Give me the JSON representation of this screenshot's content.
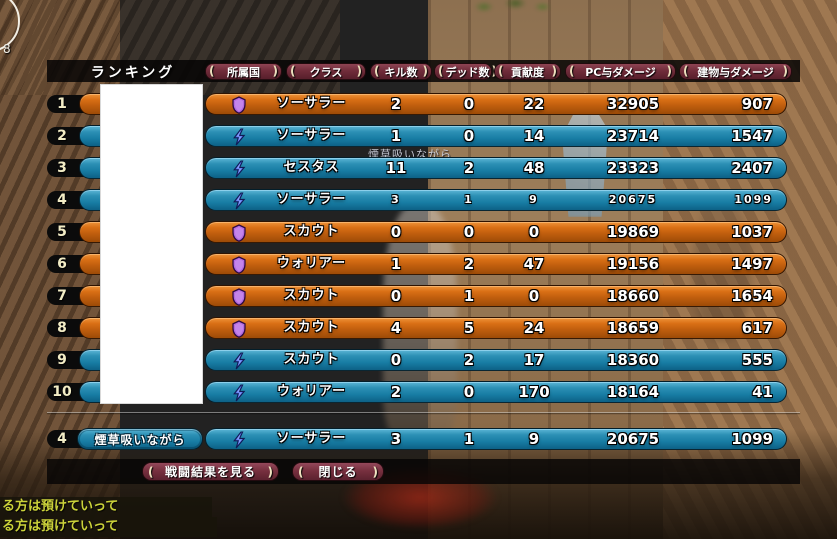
{
  "hud": {
    "counter": "8",
    "floating_name": "煙草吸いながら",
    "chat_lines": [
      "る方は預けていって",
      "る方は預けていって"
    ]
  },
  "panel": {
    "title": "ランキング",
    "columns": [
      {
        "label": "所属国"
      },
      {
        "label": "クラス"
      },
      {
        "label": "キル数"
      },
      {
        "label": "デッド数"
      },
      {
        "label": "貢献度"
      },
      {
        "label": "PC与ダメージ"
      },
      {
        "label": "建物与ダメージ"
      }
    ],
    "rows": [
      {
        "rank": "1",
        "team": "orange",
        "icon": "shield",
        "class_name": "ソーサラー",
        "kills": "2",
        "deaths": "0",
        "contribution": "22",
        "pc_damage": "32905",
        "building_damage": "907",
        "small": false
      },
      {
        "rank": "2",
        "team": "blue",
        "icon": "bolt",
        "class_name": "ソーサラー",
        "kills": "1",
        "deaths": "0",
        "contribution": "14",
        "pc_damage": "23714",
        "building_damage": "1547",
        "small": false
      },
      {
        "rank": "3",
        "team": "blue",
        "icon": "bolt",
        "class_name": "セスタス",
        "kills": "11",
        "deaths": "2",
        "contribution": "48",
        "pc_damage": "23323",
        "building_damage": "2407",
        "small": false
      },
      {
        "rank": "4",
        "team": "blue",
        "icon": "bolt",
        "class_name": "ソーサラー",
        "kills": "3",
        "deaths": "1",
        "contribution": "9",
        "pc_damage": "20675",
        "building_damage": "1099",
        "small": true
      },
      {
        "rank": "5",
        "team": "orange",
        "icon": "shield",
        "class_name": "スカウト",
        "kills": "0",
        "deaths": "0",
        "contribution": "0",
        "pc_damage": "19869",
        "building_damage": "1037",
        "small": false
      },
      {
        "rank": "6",
        "team": "orange",
        "icon": "shield",
        "class_name": "ウォリアー",
        "kills": "1",
        "deaths": "2",
        "contribution": "47",
        "pc_damage": "19156",
        "building_damage": "1497",
        "small": false
      },
      {
        "rank": "7",
        "team": "orange",
        "icon": "shield",
        "class_name": "スカウト",
        "kills": "0",
        "deaths": "1",
        "contribution": "0",
        "pc_damage": "18660",
        "building_damage": "1654",
        "small": false
      },
      {
        "rank": "8",
        "team": "orange",
        "icon": "shield",
        "class_name": "スカウト",
        "kills": "4",
        "deaths": "5",
        "contribution": "24",
        "pc_damage": "18659",
        "building_damage": "617",
        "small": false
      },
      {
        "rank": "9",
        "team": "blue",
        "icon": "bolt",
        "class_name": "スカウト",
        "kills": "0",
        "deaths": "2",
        "contribution": "17",
        "pc_damage": "18360",
        "building_damage": "555",
        "small": false
      },
      {
        "rank": "10",
        "team": "blue",
        "icon": "bolt",
        "class_name": "ウォリアー",
        "kills": "2",
        "deaths": "0",
        "contribution": "170",
        "pc_damage": "18164",
        "building_damage": "41",
        "small": false
      }
    ],
    "player_row": {
      "rank": "4",
      "name": "煙草吸いながら",
      "team": "blue",
      "icon": "bolt",
      "class_name": "ソーサラー",
      "kills": "3",
      "deaths": "1",
      "contribution": "9",
      "pc_damage": "20675",
      "building_damage": "1099",
      "small": false
    },
    "buttons": [
      {
        "label": "戦闘結果を見る"
      },
      {
        "label": "閉じる"
      }
    ]
  },
  "colors": {
    "team_orange": "#c05e0e",
    "team_blue": "#187da4",
    "tab_maroon": "#702c3a",
    "rank_text": "#f3edc6",
    "chat_text": "#cbd23a",
    "shield_icon": "#b36ae0",
    "bolt_icon": "#4f6ee8"
  }
}
